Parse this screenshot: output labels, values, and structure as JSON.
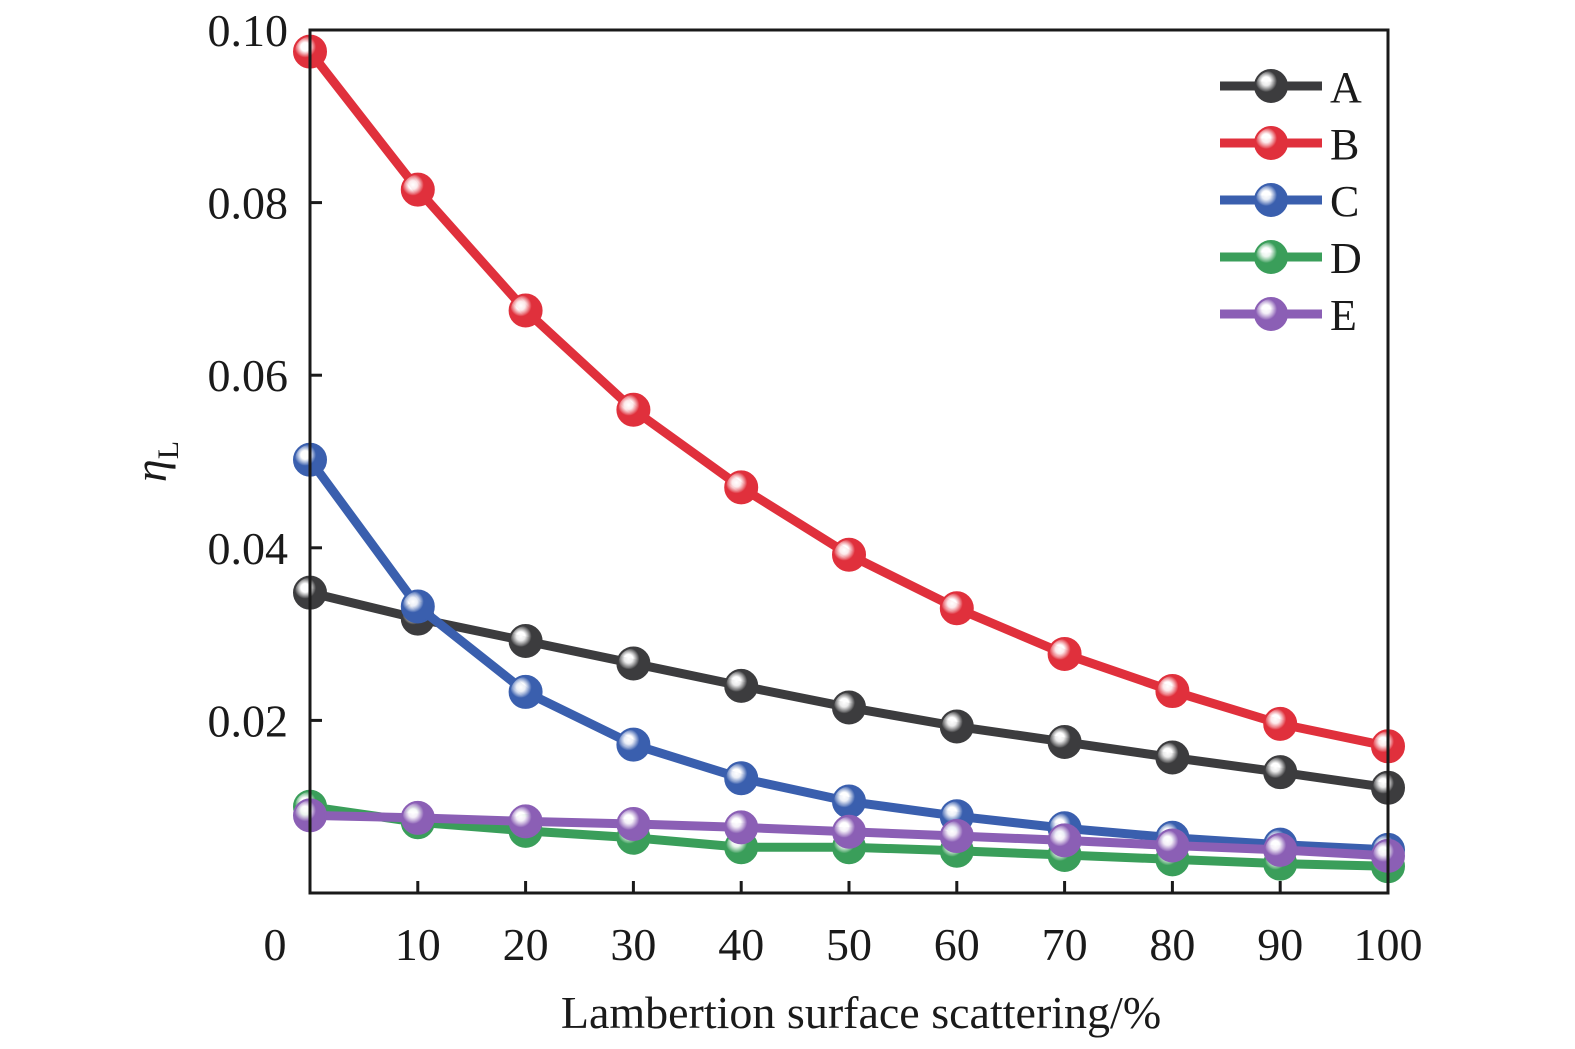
{
  "chart_data": {
    "type": "line",
    "title": "",
    "xlabel": "Lambertion surface scattering/%",
    "ylabel_main": "η",
    "ylabel_sub": "L",
    "x": [
      0,
      10,
      20,
      30,
      40,
      50,
      60,
      70,
      80,
      90,
      100
    ],
    "xlim": [
      0,
      100
    ],
    "ylim": [
      0,
      0.1
    ],
    "x_ticks": [
      "0",
      "10",
      "20",
      "30",
      "40",
      "50",
      "60",
      "70",
      "80",
      "90",
      "100"
    ],
    "y_ticks": [
      "0.02",
      "0.04",
      "0.06",
      "0.08",
      "0.10"
    ],
    "grid": false,
    "legend_position": "top-right",
    "series": [
      {
        "name": "A",
        "color": "#3c3c3e",
        "values": [
          0.0348,
          0.0318,
          0.0292,
          0.0266,
          0.024,
          0.0215,
          0.0193,
          0.0175,
          0.0157,
          0.014,
          0.0122
        ]
      },
      {
        "name": "B",
        "color": "#e0303c",
        "values": [
          0.0975,
          0.0815,
          0.0675,
          0.056,
          0.047,
          0.0392,
          0.033,
          0.0277,
          0.0234,
          0.0196,
          0.017
        ]
      },
      {
        "name": "C",
        "color": "#3a5fae",
        "values": [
          0.0502,
          0.0332,
          0.0233,
          0.0172,
          0.0133,
          0.0106,
          0.0089,
          0.0075,
          0.0064,
          0.0056,
          0.005
        ]
      },
      {
        "name": "D",
        "color": "#3a9e5a",
        "values": [
          0.01,
          0.0082,
          0.0072,
          0.0064,
          0.0053,
          0.0053,
          0.0049,
          0.0044,
          0.0039,
          0.0034,
          0.0031
        ]
      },
      {
        "name": "E",
        "color": "#8b5fb5",
        "values": [
          0.009,
          0.0087,
          0.0083,
          0.008,
          0.0076,
          0.0071,
          0.0066,
          0.0061,
          0.0055,
          0.005,
          0.0043
        ]
      }
    ]
  }
}
